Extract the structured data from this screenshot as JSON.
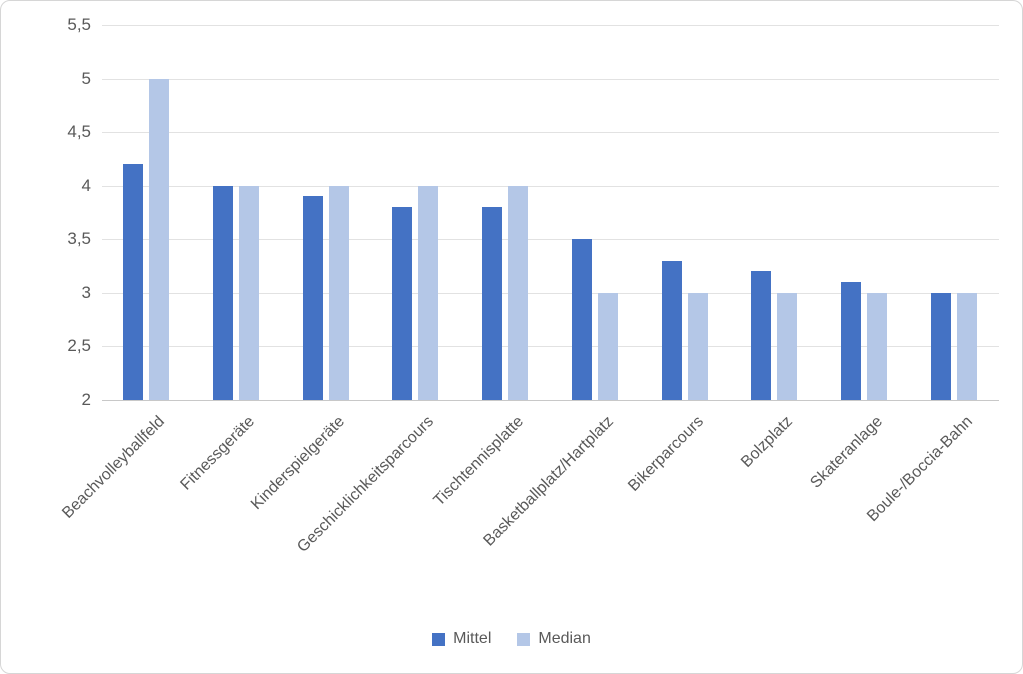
{
  "chart_data": {
    "type": "bar",
    "title": "",
    "categories": [
      "Beachvolleyballfeld",
      "Fitnessgeräte",
      "Kinderspielgeräte",
      "Geschicklichkeitsparcours",
      "Tischtennisplatte",
      "Basketballplatz/Hartplatz",
      "Bikerparcours",
      "Bolzplatz",
      "Skateranlage",
      "Boule-/Boccia-Bahn"
    ],
    "series": [
      {
        "name": "Mittel",
        "color": "#4472C4",
        "values": [
          4.2,
          4,
          3.9,
          3.8,
          3.8,
          3.5,
          3.3,
          3.2,
          3.1,
          3
        ]
      },
      {
        "name": "Median",
        "color": "#B4C7E7",
        "values": [
          5,
          4,
          4,
          4,
          4,
          3,
          3,
          3,
          3,
          3
        ]
      }
    ],
    "xlabel": "",
    "ylabel": "",
    "ylim": [
      2,
      5.5
    ],
    "y_tick_step": 0.5,
    "y_ticks": [
      {
        "value": 2,
        "label": "2"
      },
      {
        "value": 2.5,
        "label": "2,5"
      },
      {
        "value": 3,
        "label": "3"
      },
      {
        "value": 3.5,
        "label": "3,5"
      },
      {
        "value": 4,
        "label": "4"
      },
      {
        "value": 4.5,
        "label": "4,5"
      },
      {
        "value": 5,
        "label": "5"
      },
      {
        "value": 5.5,
        "label": "5,5"
      }
    ],
    "grid": true,
    "legend_position": "bottom"
  },
  "colors": {
    "series_mittel": "#4472C4",
    "series_median": "#B4C7E7",
    "text": "#595959",
    "gridline": "#E2E2E2",
    "axis_line": "#C8C8C8",
    "frame_border": "#D6D6D6",
    "background": "#FFFFFF"
  }
}
